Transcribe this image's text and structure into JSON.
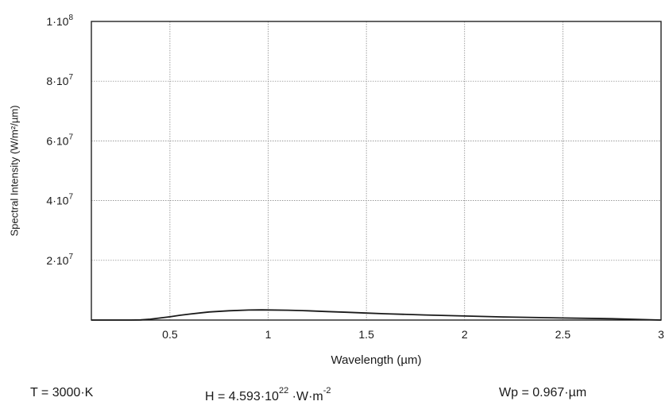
{
  "chart_data": {
    "type": "line",
    "xlabel": "Wavelength (µm)",
    "ylabel": "Spectral Intensity (W/m²/µm)",
    "xlim": [
      0.1,
      3
    ],
    "ylim": [
      0,
      100000000
    ],
    "x_ticks": [
      {
        "value": 0.5,
        "label": "0.5"
      },
      {
        "value": 1,
        "label": "1"
      },
      {
        "value": 1.5,
        "label": "1.5"
      },
      {
        "value": 2,
        "label": "2"
      },
      {
        "value": 2.5,
        "label": "2.5"
      },
      {
        "value": 3,
        "label": "3"
      }
    ],
    "y_ticks": [
      {
        "value": 20000000,
        "mantissa": "2·10",
        "exponent": "7"
      },
      {
        "value": 40000000,
        "mantissa": "4·10",
        "exponent": "7"
      },
      {
        "value": 60000000,
        "mantissa": "6·10",
        "exponent": "7"
      },
      {
        "value": 80000000,
        "mantissa": "8·10",
        "exponent": "7"
      },
      {
        "value": 100000000,
        "mantissa": "1·10",
        "exponent": "8"
      }
    ],
    "grid": true,
    "series": [
      {
        "color": "#1a1a1a",
        "x": [
          0.1,
          0.3,
          0.35,
          0.4,
          0.45,
          0.5,
          0.55,
          0.6,
          0.7,
          0.8,
          0.9,
          0.967,
          1.0,
          1.1,
          1.2,
          1.3,
          1.4,
          1.5,
          1.6,
          1.8,
          2.0,
          2.2,
          2.5,
          2.75,
          3.0
        ],
        "y": [
          0,
          0,
          50000,
          300000,
          700000,
          1100000,
          1600000,
          2000000,
          2700000,
          3100000,
          3350000,
          3400000,
          3380000,
          3300000,
          3100000,
          2850000,
          2600000,
          2350000,
          2100000,
          1700000,
          1350000,
          1050000,
          700000,
          450000,
          0
        ]
      }
    ]
  },
  "footer": {
    "temperature": {
      "text": "T = 3000·K"
    },
    "total_power": {
      "prefix": "H = 4.593·10",
      "exponent": "22",
      "suffix": " ·W·m",
      "suffix_exponent": "-2"
    },
    "peak_wavelength": {
      "text": "Wp = 0.967·µm"
    }
  }
}
